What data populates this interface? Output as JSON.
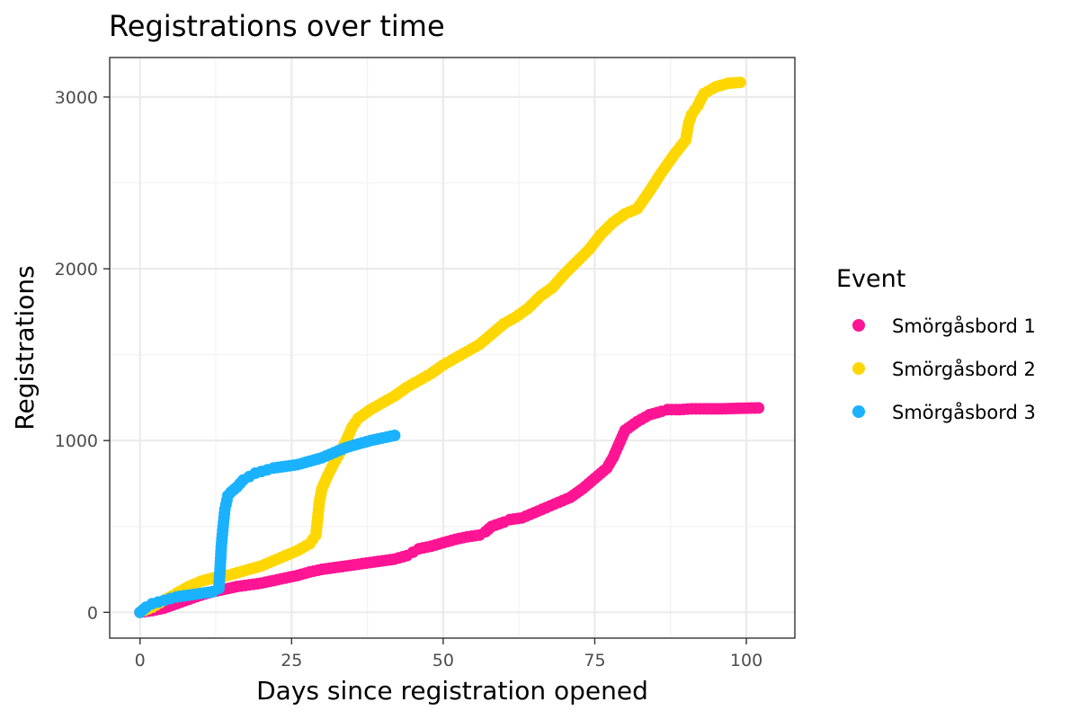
{
  "chart_data": {
    "type": "scatter",
    "title": "Registrations over time",
    "xlabel": "Days since registration opened",
    "ylabel": "Registrations",
    "xlim": [
      -5,
      108
    ],
    "ylim": [
      -150,
      3230
    ],
    "x_ticks": [
      0,
      25,
      50,
      75,
      100
    ],
    "y_ticks": [
      0,
      1000,
      2000,
      3000
    ],
    "grid": true,
    "legend": {
      "title": "Event",
      "position": "right"
    },
    "series": [
      {
        "name": "Smörgåsbord 1",
        "color": "#ff1493",
        "points": [
          [
            0,
            0
          ],
          [
            2,
            10
          ],
          [
            4,
            25
          ],
          [
            6,
            50
          ],
          [
            8,
            75
          ],
          [
            10,
            100
          ],
          [
            12,
            120
          ],
          [
            14,
            135
          ],
          [
            16,
            150
          ],
          [
            18,
            160
          ],
          [
            20,
            170
          ],
          [
            22,
            185
          ],
          [
            24,
            200
          ],
          [
            26,
            215
          ],
          [
            28,
            235
          ],
          [
            30,
            250
          ],
          [
            32,
            260
          ],
          [
            34,
            270
          ],
          [
            36,
            280
          ],
          [
            38,
            290
          ],
          [
            40,
            300
          ],
          [
            42,
            310
          ],
          [
            44,
            330
          ],
          [
            45,
            350
          ],
          [
            46,
            370
          ],
          [
            48,
            385
          ],
          [
            50,
            405
          ],
          [
            52,
            425
          ],
          [
            54,
            440
          ],
          [
            56,
            450
          ],
          [
            57,
            470
          ],
          [
            58,
            500
          ],
          [
            60,
            525
          ],
          [
            61,
            540
          ],
          [
            63,
            550
          ],
          [
            65,
            580
          ],
          [
            67,
            610
          ],
          [
            69,
            640
          ],
          [
            71,
            670
          ],
          [
            73,
            720
          ],
          [
            75,
            780
          ],
          [
            77,
            840
          ],
          [
            78,
            900
          ],
          [
            79,
            980
          ],
          [
            80,
            1060
          ],
          [
            82,
            1110
          ],
          [
            84,
            1150
          ],
          [
            86,
            1170
          ],
          [
            87,
            1180
          ],
          [
            89,
            1180
          ],
          [
            91,
            1185
          ],
          [
            93,
            1185
          ],
          [
            96,
            1185
          ],
          [
            99,
            1188
          ],
          [
            102,
            1190
          ]
        ]
      },
      {
        "name": "Smörgåsbord 2",
        "color": "#ffd700",
        "points": [
          [
            0,
            0
          ],
          [
            2,
            30
          ],
          [
            4,
            70
          ],
          [
            6,
            110
          ],
          [
            8,
            150
          ],
          [
            10,
            180
          ],
          [
            12,
            200
          ],
          [
            14,
            210
          ],
          [
            16,
            230
          ],
          [
            18,
            250
          ],
          [
            20,
            270
          ],
          [
            22,
            300
          ],
          [
            24,
            330
          ],
          [
            26,
            360
          ],
          [
            28,
            400
          ],
          [
            29,
            450
          ],
          [
            29.3,
            550
          ],
          [
            29.6,
            650
          ],
          [
            30,
            720
          ],
          [
            31,
            800
          ],
          [
            32,
            870
          ],
          [
            33,
            930
          ],
          [
            34,
            1000
          ],
          [
            35,
            1080
          ],
          [
            36,
            1130
          ],
          [
            38,
            1180
          ],
          [
            40,
            1220
          ],
          [
            42,
            1260
          ],
          [
            44,
            1310
          ],
          [
            46,
            1350
          ],
          [
            48,
            1390
          ],
          [
            50,
            1440
          ],
          [
            52,
            1480
          ],
          [
            54,
            1520
          ],
          [
            56,
            1560
          ],
          [
            58,
            1620
          ],
          [
            60,
            1680
          ],
          [
            62,
            1720
          ],
          [
            64,
            1770
          ],
          [
            66,
            1840
          ],
          [
            68,
            1890
          ],
          [
            70,
            1970
          ],
          [
            72,
            2040
          ],
          [
            74,
            2110
          ],
          [
            76,
            2200
          ],
          [
            78,
            2270
          ],
          [
            80,
            2320
          ],
          [
            82,
            2350
          ],
          [
            84,
            2450
          ],
          [
            86,
            2560
          ],
          [
            88,
            2660
          ],
          [
            90,
            2750
          ],
          [
            90.5,
            2850
          ],
          [
            91,
            2900
          ],
          [
            92,
            2950
          ],
          [
            93,
            3020
          ],
          [
            95,
            3060
          ],
          [
            97,
            3080
          ],
          [
            99,
            3085
          ]
        ]
      },
      {
        "name": "Smörgåsbord 3",
        "color": "#1ab2ff",
        "points": [
          [
            0,
            0
          ],
          [
            1,
            30
          ],
          [
            2,
            50
          ],
          [
            3,
            60
          ],
          [
            4,
            70
          ],
          [
            5,
            80
          ],
          [
            6,
            90
          ],
          [
            8,
            100
          ],
          [
            10,
            110
          ],
          [
            12,
            120
          ],
          [
            13,
            140
          ],
          [
            13.2,
            250
          ],
          [
            13.4,
            380
          ],
          [
            13.7,
            500
          ],
          [
            14,
            600
          ],
          [
            14.5,
            680
          ],
          [
            15,
            700
          ],
          [
            16,
            730
          ],
          [
            17,
            770
          ],
          [
            18,
            790
          ],
          [
            19,
            810
          ],
          [
            20,
            820
          ],
          [
            21,
            830
          ],
          [
            22,
            840
          ],
          [
            24,
            850
          ],
          [
            26,
            860
          ],
          [
            28,
            880
          ],
          [
            30,
            900
          ],
          [
            32,
            930
          ],
          [
            34,
            960
          ],
          [
            36,
            980
          ],
          [
            38,
            1000
          ],
          [
            40,
            1015
          ],
          [
            42,
            1030
          ]
        ]
      }
    ]
  }
}
